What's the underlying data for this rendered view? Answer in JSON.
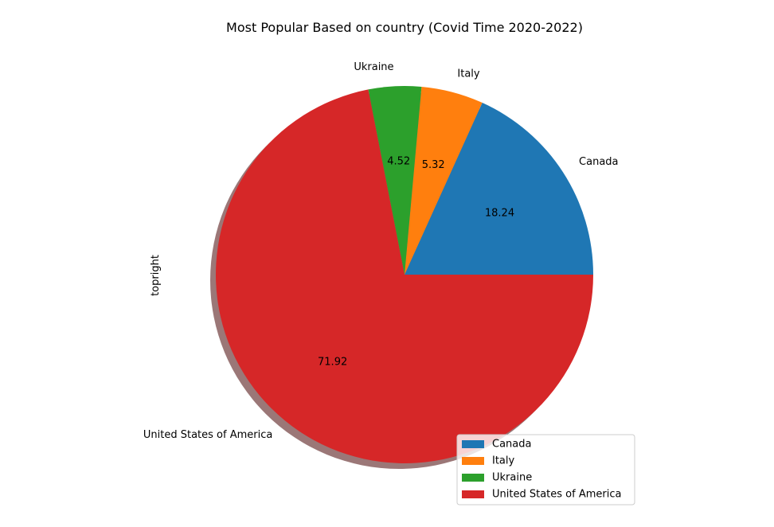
{
  "chart_data": {
    "type": "pie",
    "title": "Most Popular Based on country (Covid Time 2020-2022)",
    "ylabel": "topright",
    "categories": [
      "Canada",
      "Italy",
      "Ukraine",
      "United States of America"
    ],
    "values": [
      18.24,
      5.32,
      4.52,
      71.92
    ],
    "value_labels": [
      "18.24",
      "5.32",
      "4.52",
      "71.92"
    ],
    "colors": [
      "#1f77b4",
      "#ff7f0e",
      "#2ca02c",
      "#d62728"
    ],
    "start_angle_deg": 0,
    "direction": "counterclockwise",
    "shadow": true,
    "legend": {
      "placement": "lower-right",
      "entries": [
        "Canada",
        "Italy",
        "Ukraine",
        "United States of America"
      ]
    }
  }
}
